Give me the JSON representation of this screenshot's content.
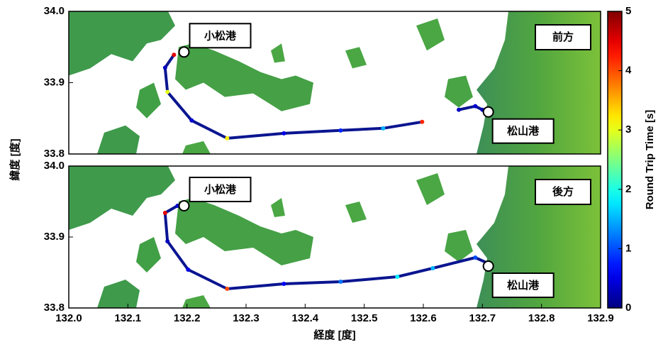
{
  "chart_data": [
    {
      "type": "map-track",
      "annotation": "前方",
      "ylabel": "緯度 [度]",
      "xlim": [
        132.0,
        132.9
      ],
      "ylim": [
        33.8,
        34.0
      ],
      "yticks": [
        {
          "value": 33.8,
          "label": "33.8"
        },
        33.9,
        {
          "value": 34.0,
          "label": "34.0"
        }
      ],
      "places": [
        {
          "label": "小松港",
          "lon": 132.195,
          "lat": 33.943
        },
        {
          "label": "松山港",
          "lon": 132.71,
          "lat": 33.859
        }
      ],
      "x": [
        132.178,
        132.163,
        132.167,
        132.208,
        132.268,
        132.364,
        132.46,
        132.532,
        132.598,
        null,
        132.66,
        132.688,
        132.7
      ],
      "y": [
        33.939,
        33.921,
        33.887,
        33.847,
        33.822,
        33.829,
        33.833,
        33.836,
        33.845,
        null,
        33.862,
        33.867,
        33.862
      ],
      "values": [
        4.5,
        0.3,
        3.0,
        0.4,
        3.2,
        0.5,
        0.8,
        1.5,
        4.2,
        null,
        0.3,
        0.4,
        0.3
      ]
    },
    {
      "type": "map-track",
      "annotation": "後方",
      "xlabel": "経度 [度]",
      "xlim": [
        132.0,
        132.9
      ],
      "ylim": [
        33.8,
        34.0
      ],
      "xticks": [
        {
          "value": 132.0,
          "label": "132.0"
        },
        132.1,
        132.2,
        132.3,
        132.4,
        132.5,
        132.6,
        132.7,
        132.8,
        132.9
      ],
      "yticks": [
        {
          "value": 33.8,
          "label": "33.8"
        },
        33.9,
        {
          "value": 34.0,
          "label": "34.0"
        }
      ],
      "places": [
        {
          "label": "小松港",
          "lon": 132.195,
          "lat": 33.944
        },
        {
          "label": "松山港",
          "lon": 132.71,
          "lat": 33.859
        }
      ],
      "x": [
        132.184,
        132.163,
        132.167,
        132.202,
        132.268,
        132.364,
        132.46,
        132.556,
        132.616,
        132.688,
        132.712
      ],
      "y": [
        33.944,
        33.934,
        33.894,
        33.854,
        33.827,
        33.834,
        33.837,
        33.844,
        33.856,
        33.871,
        33.862
      ],
      "values": [
        0.4,
        4.5,
        0.3,
        0.5,
        4.0,
        0.6,
        1.2,
        1.8,
        1.5,
        1.0,
        0.5
      ]
    }
  ],
  "colorbar": {
    "label": "Round Trip Time [s]",
    "lim": [
      0,
      5
    ],
    "ticks": [
      0,
      1,
      2,
      3,
      4,
      5
    ]
  }
}
